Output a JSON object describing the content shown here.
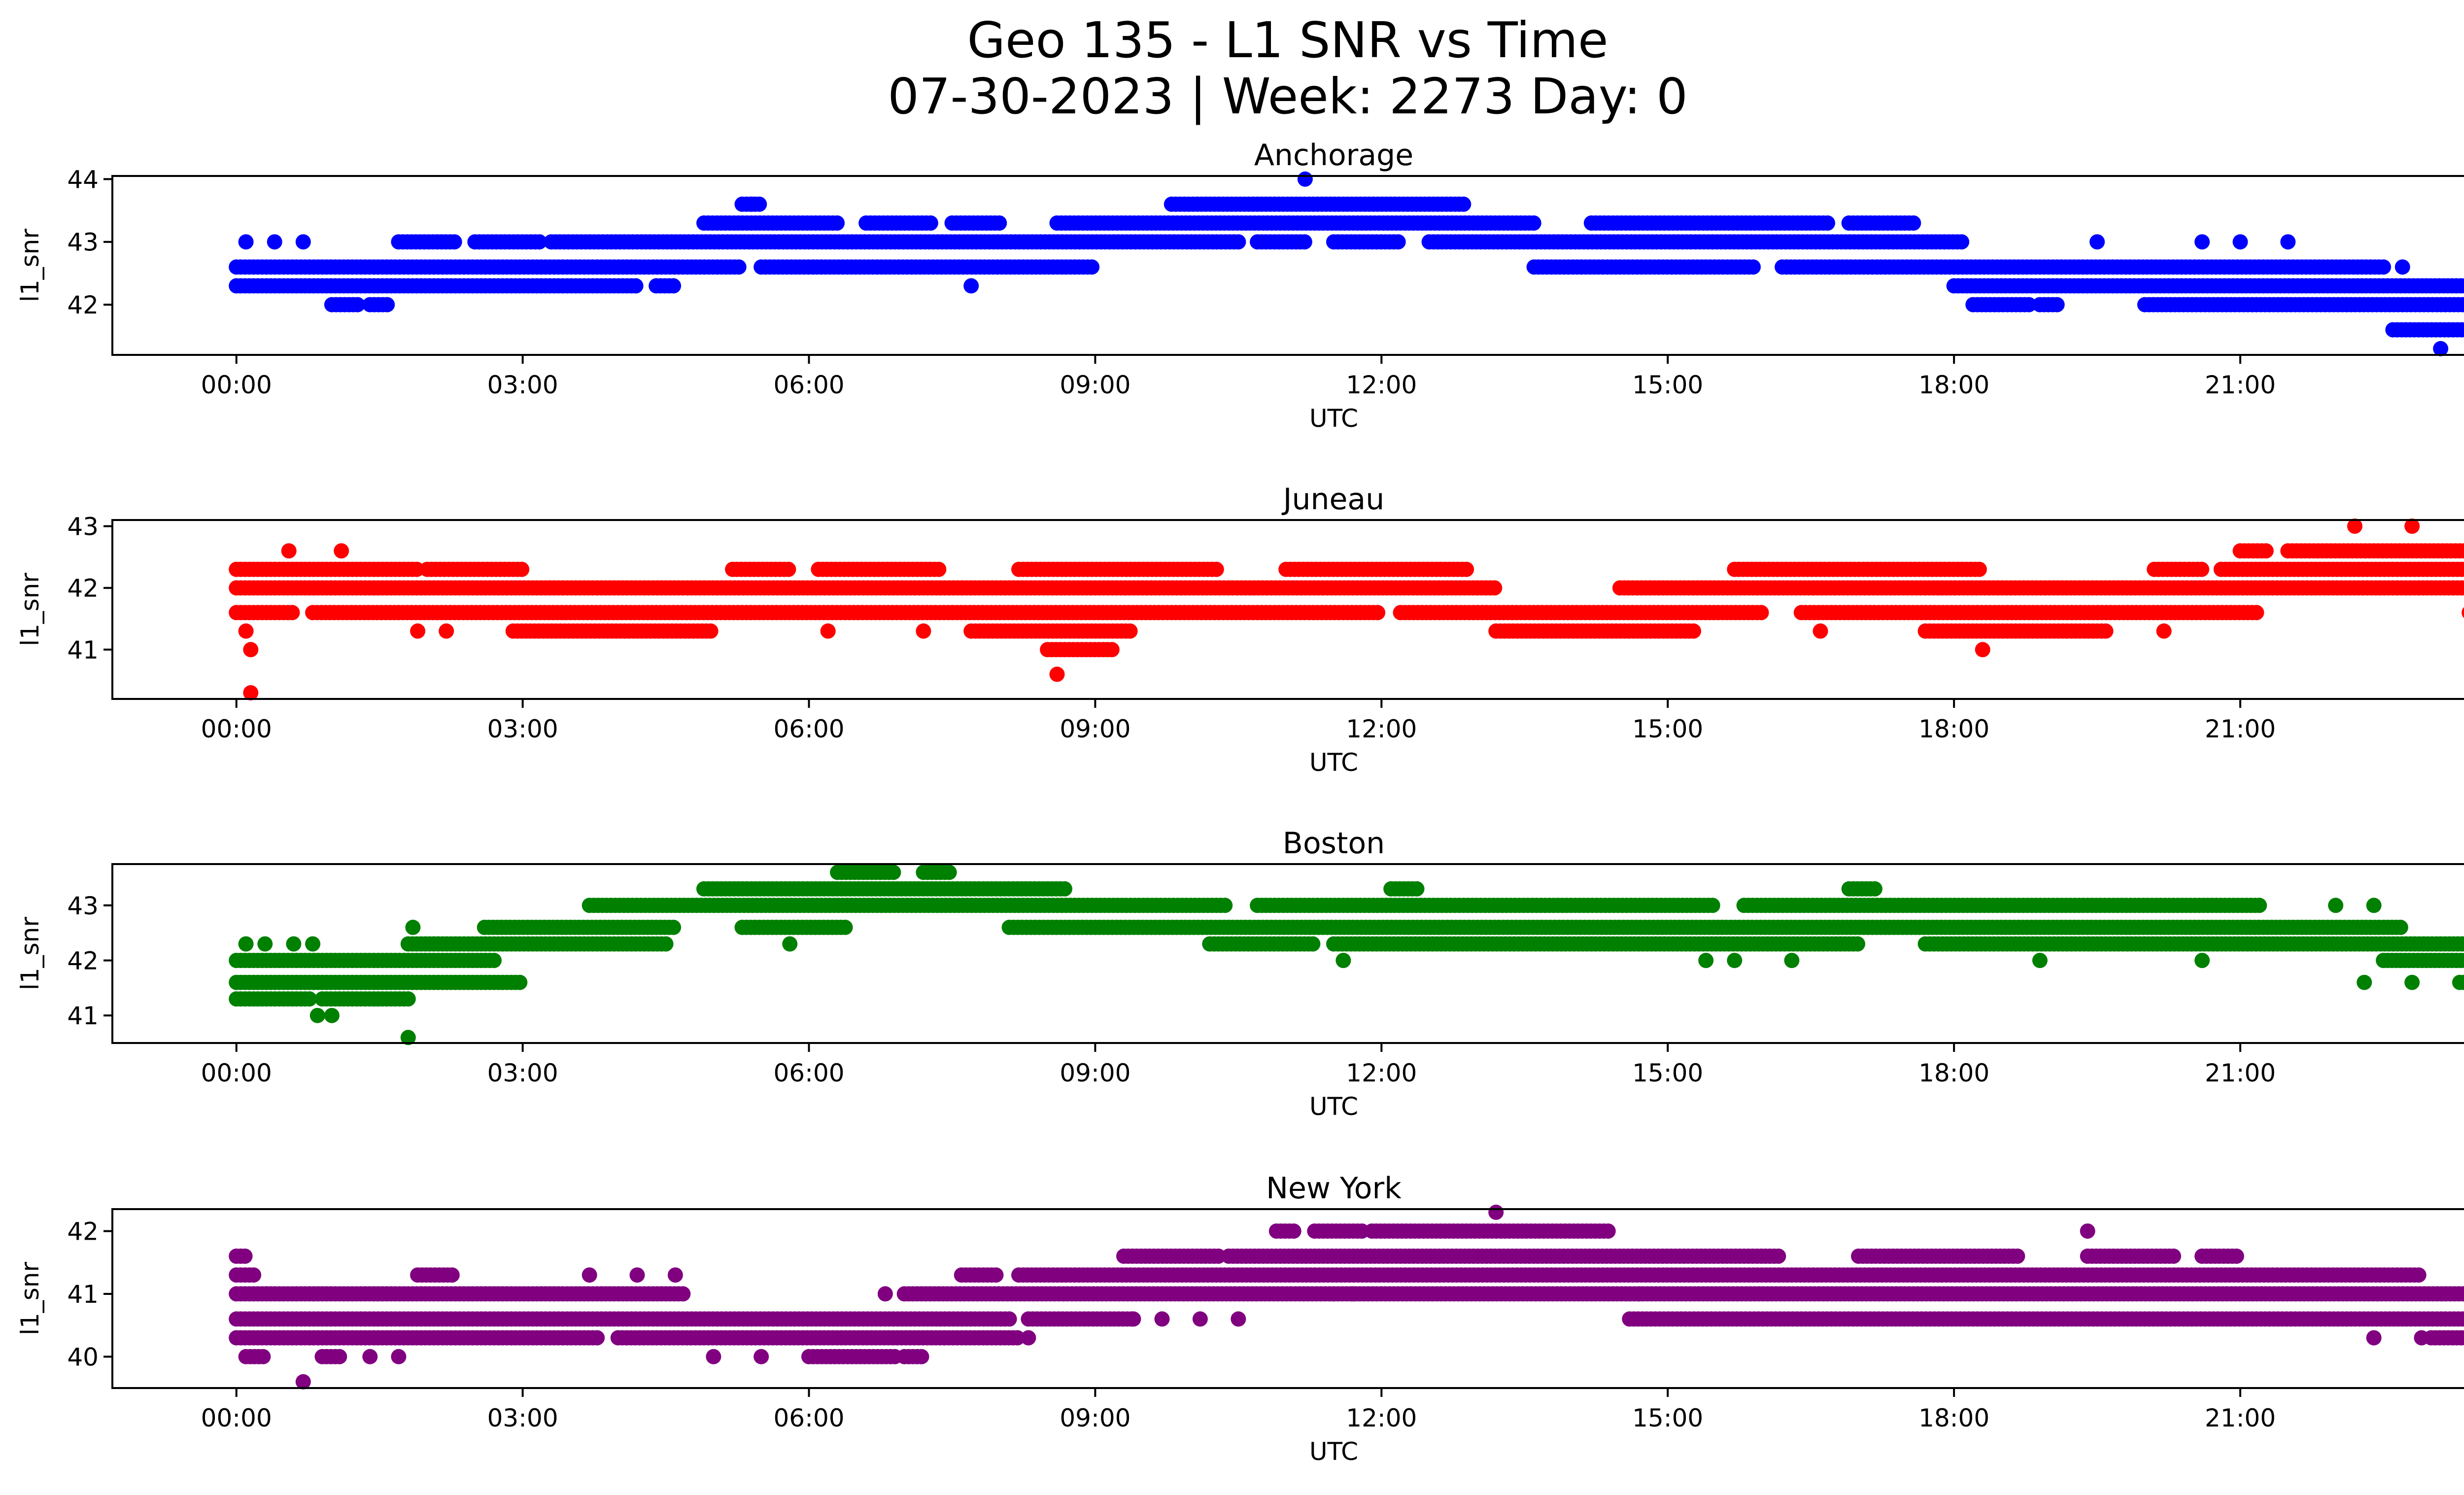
{
  "figure": {
    "title_line1": "Geo 135 - L1 SNR vs Time",
    "title_line2": "07-30-2023 | Week: 2273 Day: 0"
  },
  "chart_data": [
    {
      "type": "scatter",
      "title": "Anchorage",
      "xlabel": "UTC",
      "ylabel": "l1_snr",
      "color": "#0000ff",
      "xlim": [
        -1.3,
        24.3
      ],
      "ylim": [
        41.2,
        44.05
      ],
      "xticks": [
        "00:00",
        "03:00",
        "06:00",
        "09:00",
        "12:00",
        "15:00",
        "18:00",
        "21:00",
        "00:00"
      ],
      "yticks": [
        42,
        43,
        44
      ],
      "band_segments": [
        {
          "y": 43.6,
          "segments": [
            [
              5.3,
              5.5
            ],
            [
              9.8,
              12.9
            ]
          ]
        },
        {
          "y": 43.3,
          "segments": [
            [
              4.9,
              6.3
            ],
            [
              6.6,
              7.3
            ],
            [
              7.5,
              8.0
            ],
            [
              8.6,
              13.6
            ],
            [
              14.2,
              16.7
            ],
            [
              16.9,
              17.6
            ]
          ]
        },
        {
          "y": 43.0,
          "segments": [
            [
              1.7,
              2.3
            ],
            [
              2.5,
              3.2
            ],
            [
              3.3,
              10.5
            ],
            [
              10.7,
              11.2
            ],
            [
              11.5,
              12.2
            ],
            [
              12.5,
              18.1
            ]
          ]
        },
        {
          "y": 42.6,
          "segments": [
            [
              0.0,
              5.3
            ],
            [
              5.5,
              9.0
            ],
            [
              13.6,
              15.9
            ],
            [
              16.2,
              22.5
            ]
          ]
        },
        {
          "y": 42.3,
          "segments": [
            [
              0.0,
              4.2
            ],
            [
              4.4,
              4.6
            ],
            [
              18.0,
              24.0
            ]
          ]
        },
        {
          "y": 42.0,
          "segments": [
            [
              1.0,
              1.3
            ],
            [
              1.4,
              1.6
            ],
            [
              18.2,
              18.8
            ],
            [
              18.9,
              19.1
            ],
            [
              20.0,
              24.0
            ]
          ]
        },
        {
          "y": 41.6,
          "segments": [
            [
              22.6,
              24.0
            ]
          ]
        }
      ],
      "points": [
        [
          0.1,
          43.0
        ],
        [
          0.4,
          43.0
        ],
        [
          0.7,
          43.0
        ],
        [
          5.4,
          43.6
        ],
        [
          7.7,
          42.3
        ],
        [
          11.2,
          44.0
        ],
        [
          19.5,
          43.0
        ],
        [
          20.6,
          43.0
        ],
        [
          21.0,
          43.0
        ],
        [
          21.5,
          43.0
        ],
        [
          22.7,
          42.6
        ],
        [
          23.1,
          41.3
        ]
      ]
    },
    {
      "type": "scatter",
      "title": "Juneau",
      "xlabel": "UTC",
      "ylabel": "l1_snr",
      "color": "#ff0000",
      "xlim": [
        -1.3,
        24.3
      ],
      "ylim": [
        40.2,
        43.1
      ],
      "xticks": [
        "00:00",
        "03:00",
        "06:00",
        "09:00",
        "12:00",
        "15:00",
        "18:00",
        "21:00",
        "00:00"
      ],
      "yticks": [
        41,
        42,
        43
      ],
      "band_segments": [
        {
          "y": 42.6,
          "segments": [
            [
              21.0,
              21.3
            ],
            [
              21.5,
              24.0
            ]
          ]
        },
        {
          "y": 42.3,
          "segments": [
            [
              0.0,
              1.9
            ],
            [
              2.0,
              3.0
            ],
            [
              5.2,
              5.8
            ],
            [
              6.1,
              7.4
            ],
            [
              8.2,
              10.3
            ],
            [
              11.0,
              12.9
            ],
            [
              15.7,
              18.3
            ],
            [
              20.1,
              20.6
            ],
            [
              20.8,
              24.0
            ]
          ]
        },
        {
          "y": 42.0,
          "segments": [
            [
              0.0,
              13.2
            ],
            [
              14.5,
              24.0
            ]
          ]
        },
        {
          "y": 41.6,
          "segments": [
            [
              0.0,
              0.6
            ],
            [
              0.8,
              12.0
            ],
            [
              12.2,
              16.0
            ],
            [
              16.4,
              21.2
            ]
          ]
        },
        {
          "y": 41.3,
          "segments": [
            [
              2.9,
              5.0
            ],
            [
              7.7,
              9.4
            ],
            [
              13.2,
              15.3
            ],
            [
              17.7,
              19.6
            ]
          ]
        },
        {
          "y": 41.0,
          "segments": [
            [
              8.5,
              9.2
            ]
          ]
        }
      ],
      "points": [
        [
          0.1,
          41.3
        ],
        [
          0.15,
          41.0
        ],
        [
          0.15,
          40.3
        ],
        [
          0.55,
          42.6
        ],
        [
          1.1,
          42.6
        ],
        [
          1.9,
          41.3
        ],
        [
          2.2,
          41.3
        ],
        [
          6.2,
          41.3
        ],
        [
          7.2,
          41.3
        ],
        [
          8.6,
          40.6
        ],
        [
          16.6,
          41.3
        ],
        [
          18.3,
          41.0
        ],
        [
          20.2,
          41.3
        ],
        [
          22.2,
          43.0
        ],
        [
          22.8,
          43.0
        ],
        [
          23.4,
          41.6
        ]
      ]
    },
    {
      "type": "scatter",
      "title": "Boston",
      "xlabel": "UTC",
      "ylabel": "l1_snr",
      "color": "#008000",
      "xlim": [
        -1.3,
        24.3
      ],
      "ylim": [
        40.5,
        43.75
      ],
      "xticks": [
        "00:00",
        "03:00",
        "06:00",
        "09:00",
        "12:00",
        "15:00",
        "18:00",
        "21:00",
        "00:00"
      ],
      "yticks": [
        41,
        42,
        43
      ],
      "band_segments": [
        {
          "y": 43.6,
          "segments": [
            [
              6.3,
              6.9
            ],
            [
              7.2,
              7.5
            ]
          ]
        },
        {
          "y": 43.3,
          "segments": [
            [
              4.9,
              8.7
            ],
            [
              12.1,
              12.4
            ],
            [
              16.9,
              17.2
            ]
          ]
        },
        {
          "y": 43.0,
          "segments": [
            [
              3.7,
              10.4
            ],
            [
              10.7,
              15.5
            ],
            [
              15.8,
              21.2
            ]
          ]
        },
        {
          "y": 42.6,
          "segments": [
            [
              2.6,
              4.6
            ],
            [
              5.3,
              6.4
            ],
            [
              8.1,
              22.7
            ]
          ]
        },
        {
          "y": 42.3,
          "segments": [
            [
              1.8,
              4.5
            ],
            [
              10.2,
              11.3
            ],
            [
              11.5,
              17.0
            ],
            [
              17.7,
              24.0
            ]
          ]
        },
        {
          "y": 42.0,
          "segments": [
            [
              0.0,
              2.7
            ],
            [
              22.5,
              24.0
            ]
          ]
        },
        {
          "y": 41.6,
          "segments": [
            [
              0.0,
              3.0
            ],
            [
              23.3,
              24.0
            ]
          ]
        },
        {
          "y": 41.3,
          "segments": [
            [
              0.0,
              0.8
            ],
            [
              0.9,
              1.8
            ]
          ]
        }
      ],
      "points": [
        [
          0.1,
          42.3
        ],
        [
          0.3,
          42.3
        ],
        [
          0.6,
          42.3
        ],
        [
          0.8,
          42.3
        ],
        [
          0.85,
          41.0
        ],
        [
          1.0,
          41.0
        ],
        [
          1.8,
          40.6
        ],
        [
          1.85,
          42.6
        ],
        [
          5.8,
          42.3
        ],
        [
          11.6,
          42.0
        ],
        [
          15.4,
          42.0
        ],
        [
          15.7,
          42.0
        ],
        [
          16.3,
          42.0
        ],
        [
          18.9,
          42.0
        ],
        [
          20.6,
          42.0
        ],
        [
          22.3,
          41.6
        ],
        [
          22.8,
          41.6
        ],
        [
          22.0,
          43.0
        ],
        [
          22.4,
          43.0
        ]
      ]
    },
    {
      "type": "scatter",
      "title": "New York",
      "xlabel": "UTC",
      "ylabel": "l1_snr",
      "color": "#800080",
      "xlim": [
        -1.3,
        24.3
      ],
      "ylim": [
        39.5,
        42.35
      ],
      "xticks": [
        "00:00",
        "03:00",
        "06:00",
        "09:00",
        "12:00",
        "15:00",
        "18:00",
        "21:00",
        "00:00"
      ],
      "yticks": [
        40,
        41,
        42
      ],
      "band_segments": [
        {
          "y": 42.0,
          "segments": [
            [
              10.9,
              11.1
            ],
            [
              11.3,
              11.8
            ],
            [
              11.9,
              14.4
            ]
          ]
        },
        {
          "y": 41.6,
          "segments": [
            [
              0.0,
              0.1
            ],
            [
              9.3,
              10.3
            ],
            [
              10.4,
              16.2
            ],
            [
              17.0,
              18.7
            ],
            [
              19.4,
              20.3
            ],
            [
              20.6,
              21.0
            ]
          ]
        },
        {
          "y": 41.3,
          "segments": [
            [
              0.0,
              0.2
            ],
            [
              1.9,
              2.3
            ],
            [
              7.6,
              8.0
            ],
            [
              8.2,
              22.9
            ]
          ]
        },
        {
          "y": 41.0,
          "segments": [
            [
              0.0,
              4.7
            ],
            [
              7.0,
              24.0
            ]
          ]
        },
        {
          "y": 40.6,
          "segments": [
            [
              0.0,
              8.1
            ],
            [
              8.3,
              9.4
            ],
            [
              14.6,
              24.0
            ]
          ]
        },
        {
          "y": 40.3,
          "segments": [
            [
              0.0,
              3.8
            ],
            [
              4.0,
              8.2
            ],
            [
              23.0,
              24.0
            ]
          ]
        },
        {
          "y": 40.0,
          "segments": [
            [
              0.1,
              0.3
            ],
            [
              0.9,
              1.1
            ],
            [
              6.0,
              6.9
            ],
            [
              7.0,
              7.2
            ]
          ]
        }
      ],
      "points": [
        [
          0.7,
          39.6
        ],
        [
          1.4,
          40.0
        ],
        [
          1.7,
          40.0
        ],
        [
          3.7,
          41.3
        ],
        [
          4.2,
          41.3
        ],
        [
          4.6,
          41.3
        ],
        [
          5.0,
          40.0
        ],
        [
          5.5,
          40.0
        ],
        [
          6.8,
          41.0
        ],
        [
          8.3,
          40.3
        ],
        [
          9.4,
          40.6
        ],
        [
          9.7,
          40.6
        ],
        [
          10.1,
          40.6
        ],
        [
          10.5,
          40.6
        ],
        [
          11.5,
          41.0
        ],
        [
          11.7,
          41.0
        ],
        [
          13.2,
          42.3
        ],
        [
          14.7,
          41.0
        ],
        [
          19.4,
          42.0
        ],
        [
          22.4,
          40.3
        ],
        [
          22.9,
          40.3
        ]
      ]
    }
  ]
}
